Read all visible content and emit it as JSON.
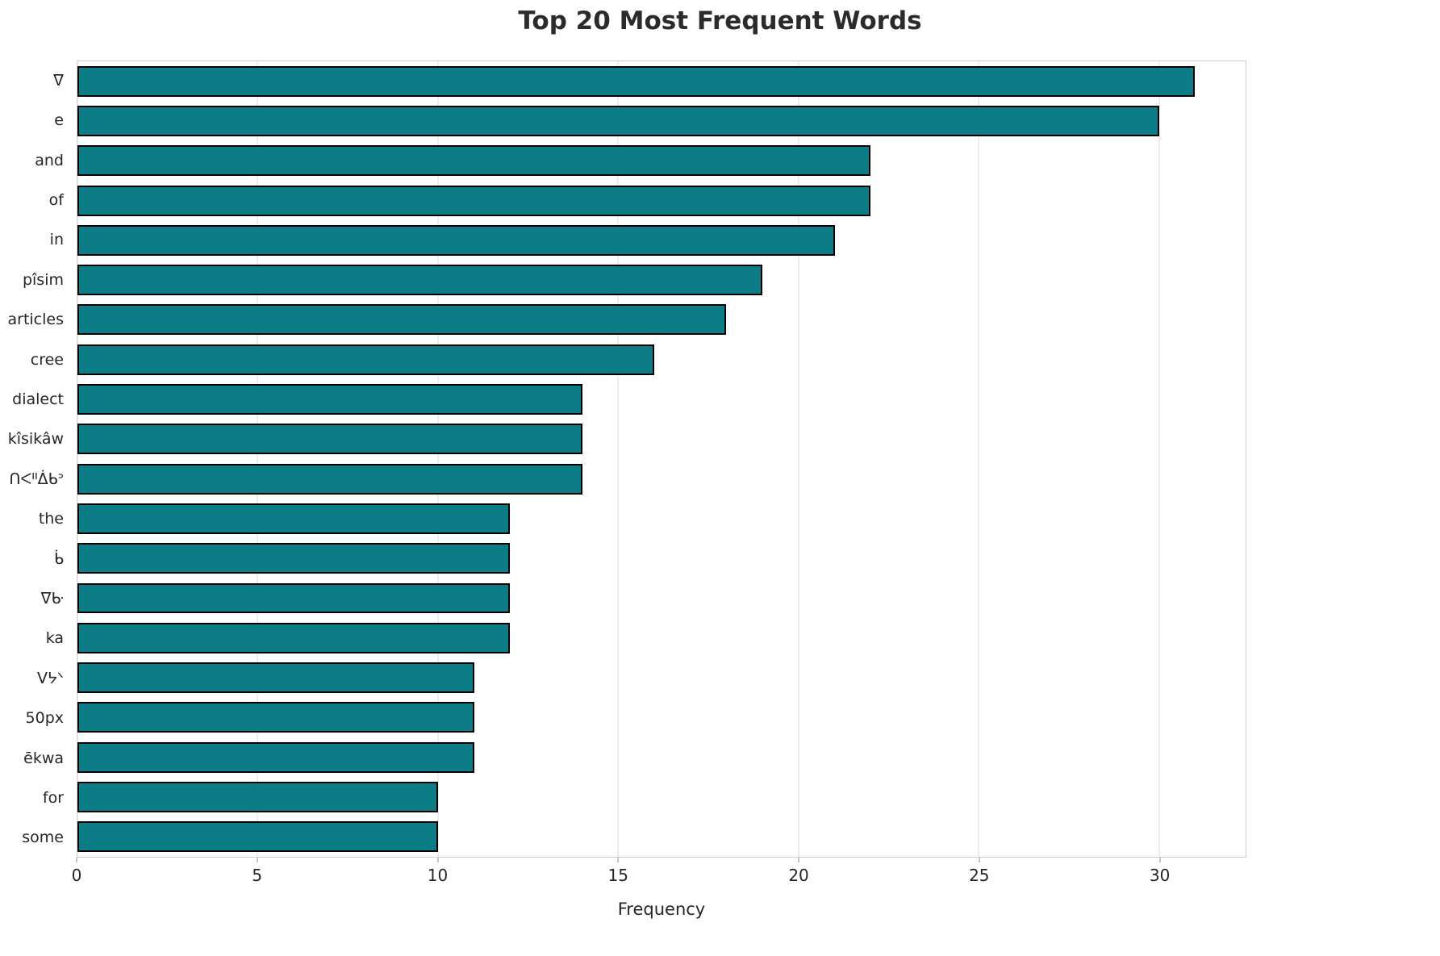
{
  "chart_data": {
    "type": "bar",
    "orientation": "horizontal",
    "title": "Top 20 Most Frequent Words",
    "xlabel": "Frequency",
    "ylabel": "",
    "categories": [
      "ᐁ",
      "e",
      "and",
      "of",
      "in",
      "pîsim",
      "articles",
      "cree",
      "dialect",
      "kîsikâw",
      "ᑎᐸᐦᐄᑲᐣ",
      "the",
      "ᑳ",
      "ᐁᑿ",
      "ka",
      "ᐯᔭᐠ",
      "50px",
      "ēkwa",
      "for",
      "some"
    ],
    "values": [
      31,
      30,
      22,
      22,
      21,
      19,
      18,
      16,
      14,
      14,
      14,
      12,
      12,
      12,
      12,
      11,
      11,
      11,
      10,
      10
    ],
    "xticks": [
      0,
      5,
      10,
      15,
      20,
      25,
      30
    ],
    "xlim": [
      0,
      32.4
    ],
    "grid": true,
    "legend": null,
    "colors": {
      "bar_fill": "#0c7d87",
      "bar_edge": "#000000",
      "gridline": "#dddddd",
      "text": "#262626"
    }
  }
}
